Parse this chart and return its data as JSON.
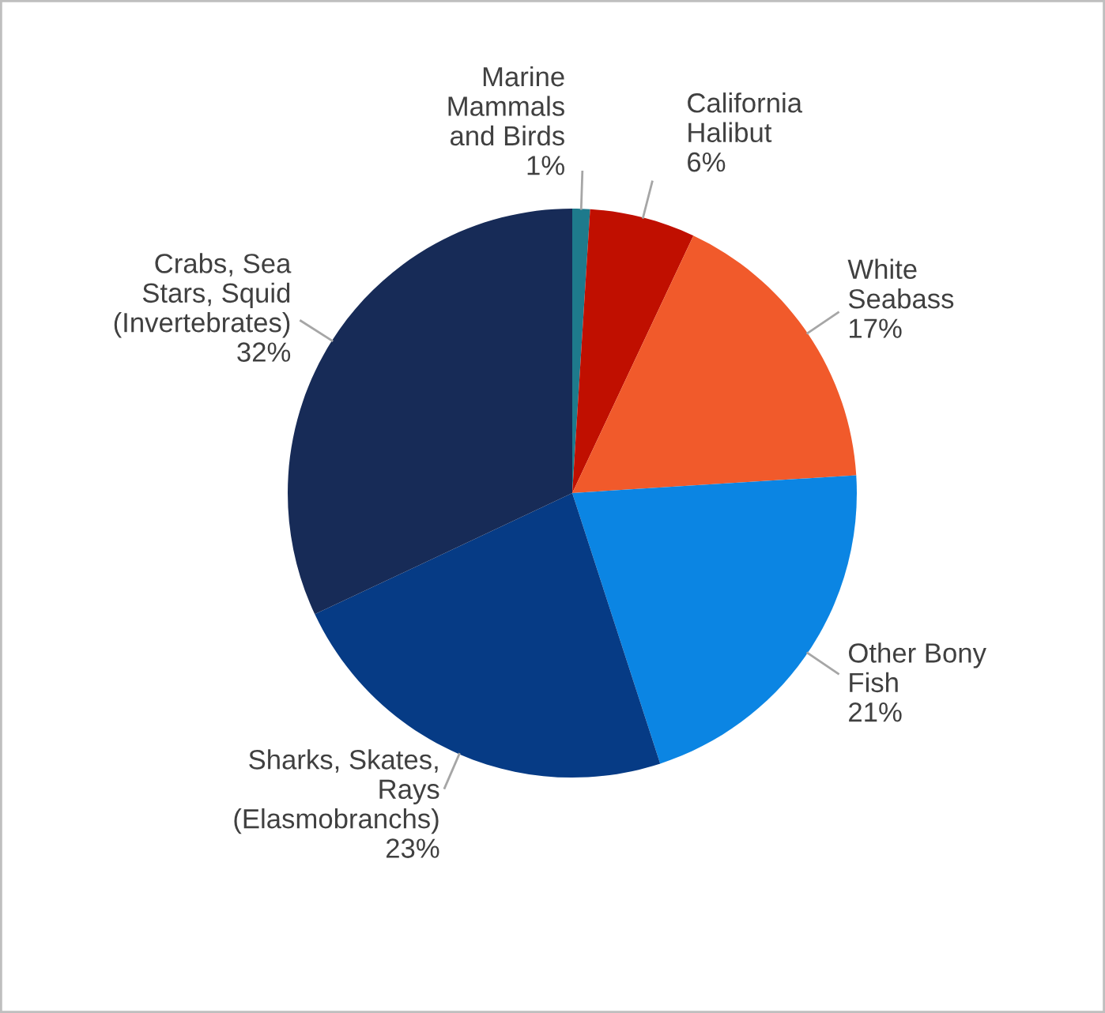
{
  "chart_data": {
    "type": "pie",
    "categories": [
      "Marine\nMammals\nand Birds",
      "California\nHalibut",
      "White\nSeabass",
      "Other Bony\nFish",
      "Sharks, Skates,\nRays\n(Elasmobranchs)",
      "Crabs, Sea\nStars, Squid\n(Invertebrates)"
    ],
    "values": [
      1,
      6,
      17,
      21,
      23,
      32
    ],
    "value_labels": [
      "1%",
      "6%",
      "17%",
      "21%",
      "23%",
      "32%"
    ],
    "colors": [
      "#1e7a8c",
      "#c00f00",
      "#f15a2b",
      "#0b85e3",
      "#063b85",
      "#172b57"
    ],
    "legend": false
  }
}
